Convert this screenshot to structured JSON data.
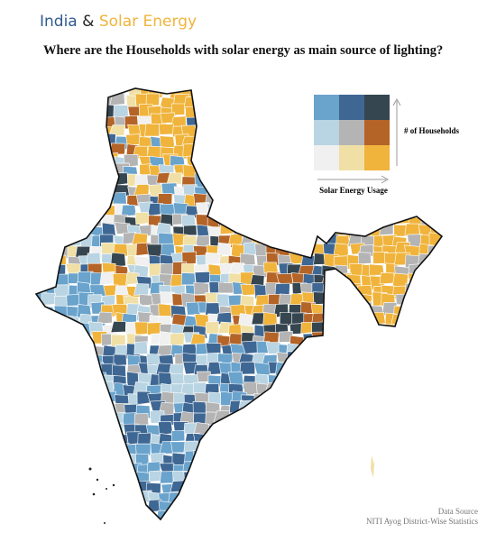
{
  "header": {
    "title_parts": [
      {
        "text": "India",
        "color": "#2f5b8c"
      },
      {
        "text": "&",
        "color": "#222222"
      },
      {
        "text": "Solar Energy",
        "color": "#f0b43c"
      }
    ],
    "subtitle": "Where are the Households with solar energy as main source of lighting?"
  },
  "legend": {
    "y_label": "# of Households",
    "x_label": "Solar Energy Usage",
    "cells": [
      [
        "#6aa3cc",
        "#3f6793",
        "#364650"
      ],
      [
        "#b9d4e2",
        "#b4b4b4",
        "#b46427"
      ],
      [
        "#f0f0f0",
        "#f0e0a6",
        "#f0b43c"
      ]
    ]
  },
  "source": {
    "label": "Data Source",
    "text": "NITI Ayog District-Wise Statistics"
  }
}
